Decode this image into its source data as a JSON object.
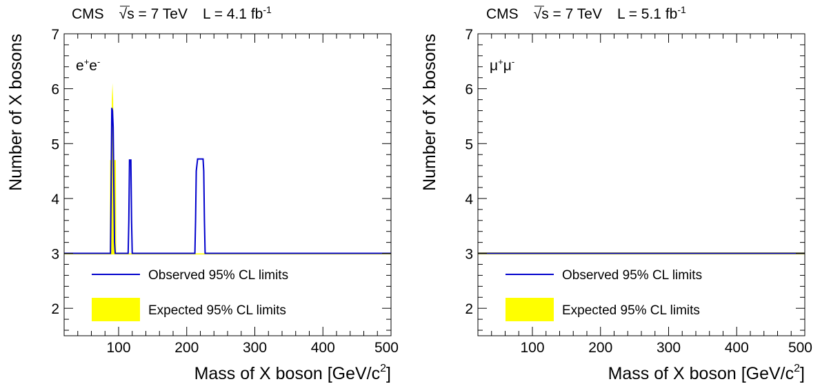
{
  "chart_data": [
    {
      "type": "line",
      "title": {
        "experiment": "CMS",
        "energy": "√s = 7 TeV",
        "lumi_prefix": "L = 4.1 fb",
        "lumi_sup": "-1"
      },
      "channel": {
        "base1": "e",
        "sup1": "+",
        "base2": "e",
        "sup2": "-"
      },
      "xlabel": "Mass of X boson [GeV/c²]",
      "ylabel": "Number of X bosons",
      "xlim": [
        20,
        500
      ],
      "ylim": [
        1.5,
        7
      ],
      "xticks": [
        100,
        200,
        300,
        400,
        500
      ],
      "yticks": [
        2,
        3,
        4,
        5,
        6,
        7
      ],
      "grid": false,
      "legend_position": "bottom-left",
      "series": [
        {
          "name": "Observed 95% CL limits",
          "kind": "line",
          "color": "#0000cc",
          "x": [
            20,
            88,
            89,
            90,
            91,
            92,
            93,
            94,
            95,
            114,
            115,
            116,
            118,
            119,
            120,
            212,
            213,
            214,
            216,
            224,
            225,
            226,
            227,
            500
          ],
          "y": [
            3,
            3,
            4.2,
            5.65,
            5.6,
            5.3,
            4.2,
            3.2,
            3,
            3,
            3.6,
            4.7,
            4.7,
            3.6,
            3,
            3,
            3.6,
            4.5,
            4.72,
            4.72,
            4.5,
            3.6,
            3,
            3
          ]
        },
        {
          "name": "Expected 95% CL limits",
          "kind": "band",
          "color": "#ffff00",
          "x": [
            20,
            87,
            87.5,
            88,
            89,
            90,
            91,
            92,
            93,
            95,
            96,
            96.5,
            500
          ],
          "upper": [
            3,
            3,
            4.7,
            4.7,
            4.7,
            5.8,
            6.1,
            5.8,
            4.7,
            4.7,
            4.7,
            3,
            3
          ],
          "lower": [
            2.98,
            2.98,
            2.98,
            2.98,
            2.98,
            2.98,
            2.98,
            2.98,
            2.98,
            2.98,
            2.98,
            2.98,
            2.98
          ]
        }
      ]
    },
    {
      "type": "line",
      "title": {
        "experiment": "CMS",
        "energy": "√s = 7 TeV",
        "lumi_prefix": "L = 5.1 fb",
        "lumi_sup": "-1"
      },
      "channel": {
        "base1": "μ",
        "sup1": "+",
        "base2": "μ",
        "sup2": "-"
      },
      "xlabel": "Mass of X boson [GeV/c²]",
      "ylabel": "Number of X bosons",
      "xlim": [
        20,
        500
      ],
      "ylim": [
        1.5,
        7
      ],
      "xticks": [
        100,
        200,
        300,
        400,
        500
      ],
      "yticks": [
        2,
        3,
        4,
        5,
        6,
        7
      ],
      "grid": false,
      "legend_position": "bottom-left",
      "series": [
        {
          "name": "Observed 95% CL limits",
          "kind": "line",
          "color": "#0000cc",
          "x": [
            20,
            500
          ],
          "y": [
            3,
            3
          ]
        },
        {
          "name": "Expected 95% CL limits",
          "kind": "band",
          "color": "#ffff00",
          "x": [
            20,
            500
          ],
          "upper": [
            3.02,
            3.02
          ],
          "lower": [
            2.98,
            2.98
          ]
        }
      ]
    }
  ]
}
